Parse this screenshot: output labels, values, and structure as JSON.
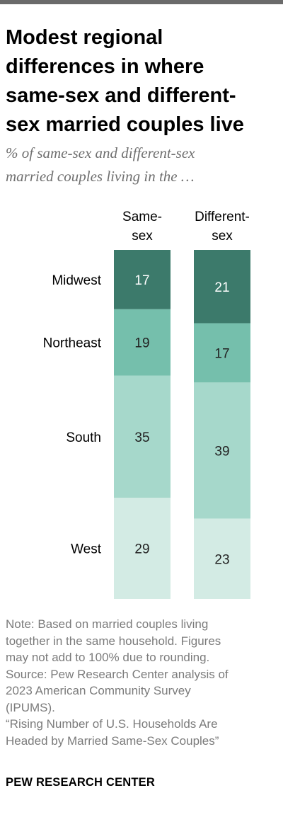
{
  "colors": {
    "top_rule": "#6b6b6b",
    "midwest": "#3c7a6b",
    "northeast": "#75bfac",
    "south": "#a6d8cb",
    "west": "#d3ebe4"
  },
  "title": "Modest regional differences in where same-sex and different-sex married couples live",
  "title_lines": [
    "Modest regional",
    "differences in where",
    "same-sex and different-",
    "sex married couples live"
  ],
  "subtitle_lines": [
    "% of same-sex and different-sex",
    "married couples living in the …"
  ],
  "chart_data": {
    "type": "bar",
    "stacked": true,
    "orientation": "vertical",
    "categories": [
      "Same-sex",
      "Different-sex"
    ],
    "category_label_lines": [
      [
        "Same-",
        "sex"
      ],
      [
        "Different-",
        "sex"
      ]
    ],
    "series": [
      {
        "name": "Midwest",
        "values": [
          17,
          21
        ],
        "color": "#3c7a6b",
        "text_color": "#ffffff"
      },
      {
        "name": "Northeast",
        "values": [
          19,
          17
        ],
        "color": "#75bfac",
        "text_color": "#222222"
      },
      {
        "name": "South",
        "values": [
          35,
          39
        ],
        "color": "#a6d8cb",
        "text_color": "#222222"
      },
      {
        "name": "West",
        "values": [
          29,
          23
        ],
        "color": "#d3ebe4",
        "text_color": "#222222"
      }
    ],
    "unit": "%"
  },
  "note_lines": [
    "Note: Based on married couples living",
    "together in the same household. Figures",
    "may not add to 100% due to rounding.",
    "Source: Pew Research Center analysis of",
    "2023 American Community Survey",
    "(IPUMS).",
    "“Rising Number of U.S. Households Are",
    "Headed by Married Same-Sex Couples”"
  ],
  "credit": "PEW RESEARCH CENTER"
}
